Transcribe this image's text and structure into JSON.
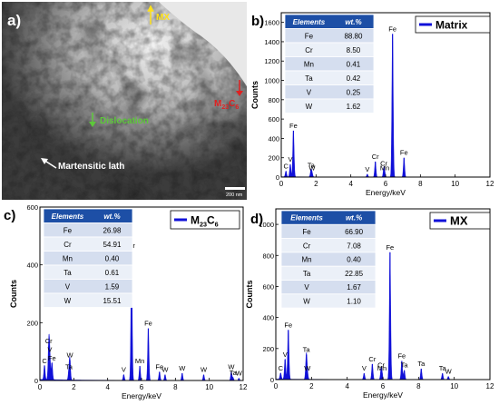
{
  "micrograph": {
    "label": "a)",
    "annotations": {
      "mx": "MX",
      "m23c6": "M",
      "m23c6_sub": "23",
      "m23c6_c": "C",
      "m23c6_sub2": "6",
      "dislocation": "Dislocation",
      "lath": "Martensitic lath"
    },
    "scale_bar": "200 nm",
    "colors": {
      "mx": "#ffe11a",
      "m23c6": "#e02020",
      "dislocation": "#5dc83a",
      "lath": "#ffffff"
    }
  },
  "chart_data": [
    {
      "panel": "b)",
      "type": "bar",
      "title": "Matrix",
      "xlabel": "Energy/keV",
      "ylabel": "Counts",
      "xlim": [
        0,
        12
      ],
      "ylim": [
        0,
        1700
      ],
      "xticks": [
        0,
        2,
        4,
        6,
        8,
        10,
        12
      ],
      "yticks": [
        0,
        200,
        400,
        600,
        800,
        1000,
        1200,
        1400,
        1600
      ],
      "table": {
        "headers": [
          "Elements",
          "wt.%"
        ],
        "rows": [
          [
            "Fe",
            "88.80"
          ],
          [
            "Cr",
            "8.50"
          ],
          [
            "Mn",
            "0.41"
          ],
          [
            "Ta",
            "0.42"
          ],
          [
            "V",
            "0.25"
          ],
          [
            "W",
            "1.62"
          ]
        ]
      },
      "peaks": [
        {
          "x": 0.27,
          "y": 60,
          "label": "C"
        },
        {
          "x": 0.52,
          "y": 130,
          "label": "V"
        },
        {
          "x": 0.7,
          "y": 480,
          "label": "Fe"
        },
        {
          "x": 1.71,
          "y": 70,
          "label": "Ta"
        },
        {
          "x": 1.77,
          "y": 40,
          "label": "W"
        },
        {
          "x": 4.95,
          "y": 30,
          "label": "V"
        },
        {
          "x": 5.41,
          "y": 160,
          "label": "Cr"
        },
        {
          "x": 5.9,
          "y": 90,
          "label": "Cr"
        },
        {
          "x": 5.95,
          "y": 40,
          "label": "Mn"
        },
        {
          "x": 6.4,
          "y": 1480,
          "label": "Fe"
        },
        {
          "x": 7.06,
          "y": 200,
          "label": "Fe"
        }
      ]
    },
    {
      "panel": "c)",
      "type": "bar",
      "title": "M23C6",
      "title_main": "M",
      "title_sub": "23",
      "title_c": "C",
      "title_sub2": "6",
      "xlabel": "Energy/keV",
      "ylabel": "Counts",
      "xlim": [
        0,
        12
      ],
      "ylim": [
        0,
        600
      ],
      "xticks": [
        0,
        2,
        4,
        6,
        8,
        10,
        12
      ],
      "yticks": [
        0,
        200,
        400,
        600
      ],
      "table": {
        "headers": [
          "Elements",
          "wt.%"
        ],
        "rows": [
          [
            "Fe",
            "26.98"
          ],
          [
            "Cr",
            "54.91"
          ],
          [
            "Mn",
            "0.40"
          ],
          [
            "Ta",
            "0.61"
          ],
          [
            "V",
            "1.59"
          ],
          [
            "W",
            "15.51"
          ]
        ]
      },
      "peaks": [
        {
          "x": 0.27,
          "y": 50,
          "label": "C"
        },
        {
          "x": 0.52,
          "y": 120,
          "label": "Cr"
        },
        {
          "x": 0.58,
          "y": 90,
          "label": "V"
        },
        {
          "x": 0.71,
          "y": 60,
          "label": "Fe"
        },
        {
          "x": 1.71,
          "y": 30,
          "label": "Ta"
        },
        {
          "x": 1.77,
          "y": 70,
          "label": "W"
        },
        {
          "x": 4.95,
          "y": 20,
          "label": "V"
        },
        {
          "x": 5.41,
          "y": 450,
          "label": "Cr"
        },
        {
          "x": 5.9,
          "y": 50,
          "label": "Mn"
        },
        {
          "x": 6.4,
          "y": 180,
          "label": "Fe"
        },
        {
          "x": 7.06,
          "y": 30,
          "label": "Fe"
        },
        {
          "x": 7.39,
          "y": 20,
          "label": "W"
        },
        {
          "x": 8.4,
          "y": 25,
          "label": "W"
        },
        {
          "x": 9.67,
          "y": 20,
          "label": "W"
        },
        {
          "x": 11.3,
          "y": 30,
          "label": "W"
        },
        {
          "x": 11.4,
          "y": 10,
          "label": "Ta"
        },
        {
          "x": 11.75,
          "y": 8,
          "label": "W"
        }
      ]
    },
    {
      "panel": "d)",
      "type": "bar",
      "title": "MX",
      "xlabel": "Energy/keV",
      "ylabel": "Counts",
      "xlim": [
        0,
        12
      ],
      "ylim": [
        0,
        1100
      ],
      "xticks": [
        0,
        2,
        4,
        6,
        8,
        10,
        12
      ],
      "yticks": [
        0,
        200,
        400,
        600,
        800,
        1000
      ],
      "table": {
        "headers": [
          "Elements",
          "wt.%"
        ],
        "rows": [
          [
            "Fe",
            "66.90"
          ],
          [
            "Cr",
            "7.08"
          ],
          [
            "Mn",
            "0.40"
          ],
          [
            "Ta",
            "22.85"
          ],
          [
            "V",
            "1.67"
          ],
          [
            "W",
            "1.10"
          ]
        ]
      },
      "peaks": [
        {
          "x": 0.27,
          "y": 40,
          "label": "C"
        },
        {
          "x": 0.52,
          "y": 130,
          "label": "V"
        },
        {
          "x": 0.7,
          "y": 320,
          "label": "Fe"
        },
        {
          "x": 1.71,
          "y": 160,
          "label": "Ta"
        },
        {
          "x": 1.77,
          "y": 40,
          "label": "W"
        },
        {
          "x": 4.95,
          "y": 40,
          "label": "V"
        },
        {
          "x": 5.41,
          "y": 100,
          "label": "Cr"
        },
        {
          "x": 5.9,
          "y": 60,
          "label": "Cr"
        },
        {
          "x": 5.95,
          "y": 40,
          "label": "Mn"
        },
        {
          "x": 6.4,
          "y": 820,
          "label": "Fe"
        },
        {
          "x": 7.06,
          "y": 120,
          "label": "Fe"
        },
        {
          "x": 7.2,
          "y": 60,
          "label": "Ta"
        },
        {
          "x": 8.15,
          "y": 70,
          "label": "Ta"
        },
        {
          "x": 9.34,
          "y": 40,
          "label": "Ta"
        },
        {
          "x": 9.67,
          "y": 20,
          "label": "W"
        }
      ]
    }
  ]
}
